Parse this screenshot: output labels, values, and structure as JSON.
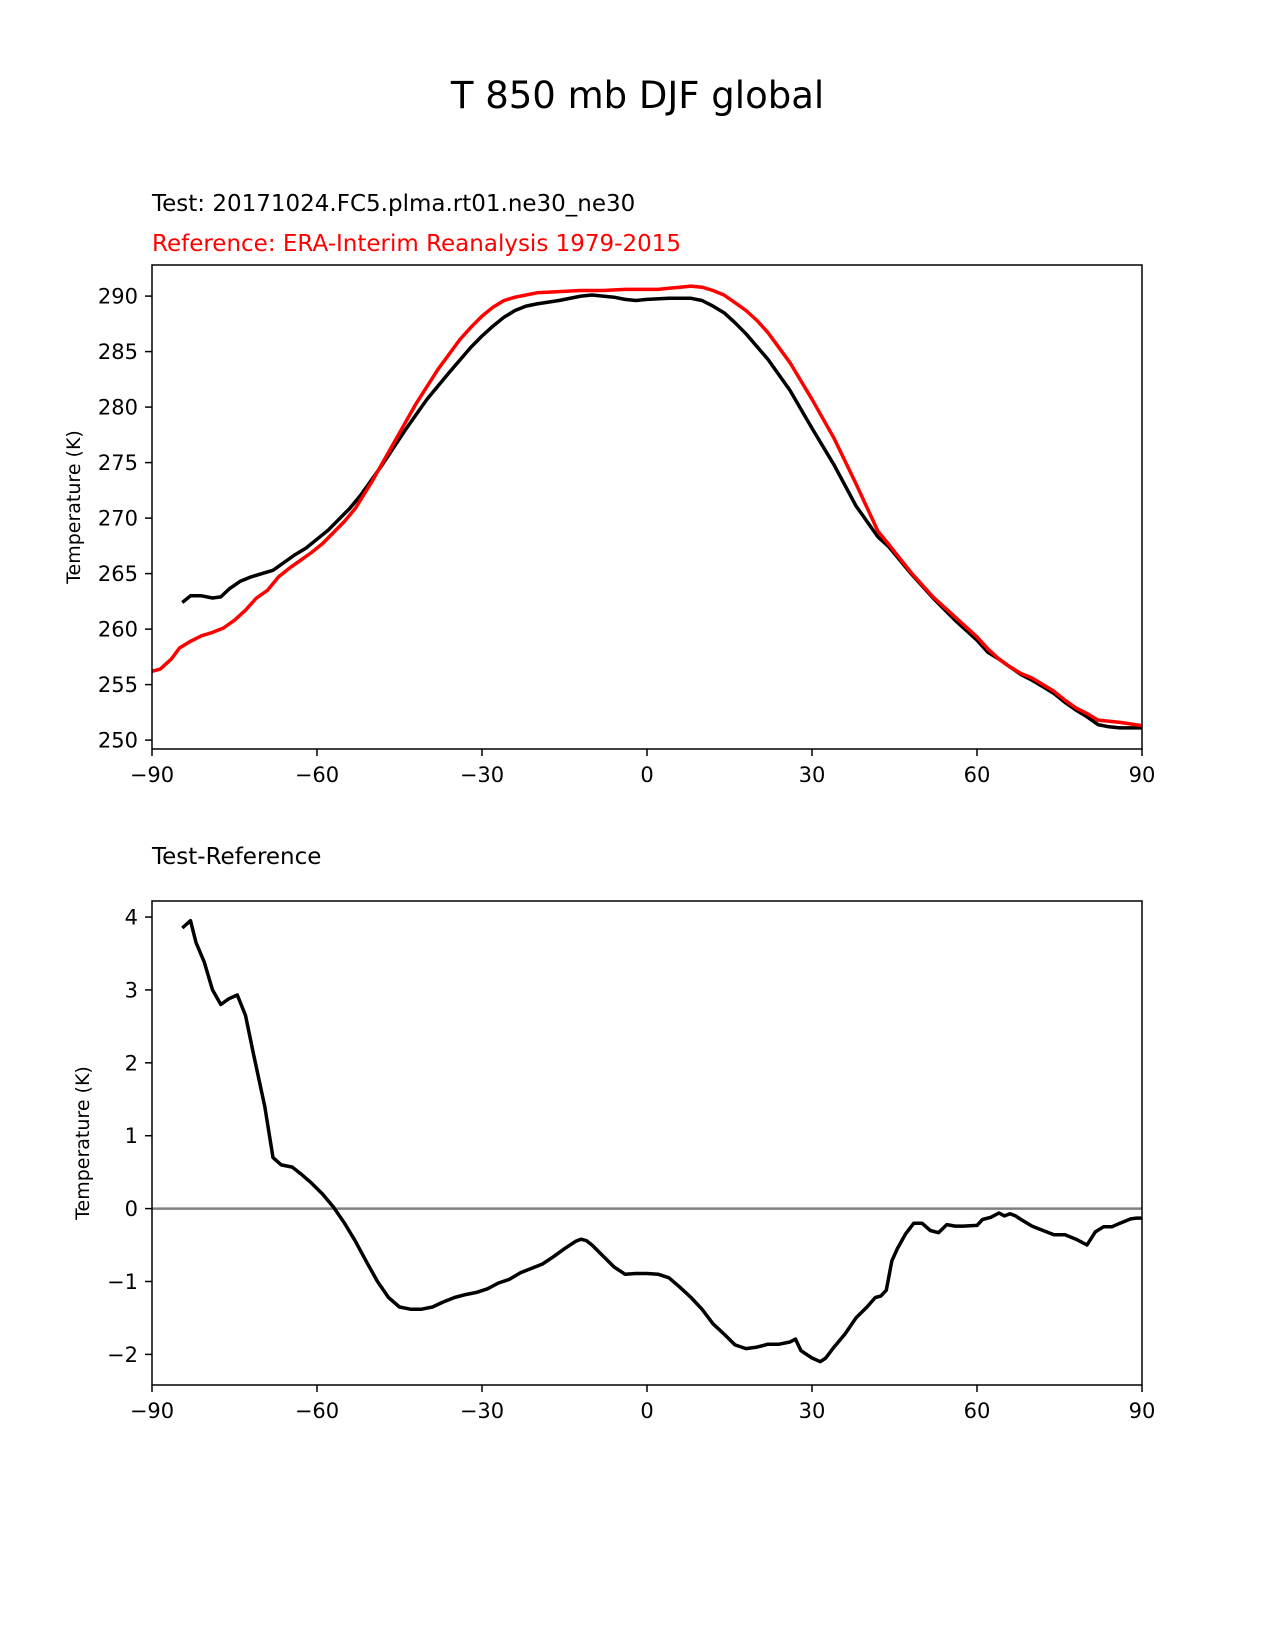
{
  "figure_title": "T 850 mb DJF global",
  "test_label": "Test: 20171024.FC5.plma.rt01.ne30_ne30",
  "reference_label": "Reference: ERA-Interim Reanalysis 1979-2015",
  "diff_label": "Test-Reference",
  "colors": {
    "test": "#000000",
    "reference": "#ff0000",
    "zero_line": "#808080"
  },
  "chart_data": [
    {
      "type": "line",
      "title": "T 850 mb DJF global",
      "xlabel": "",
      "ylabel": "Temperature (K)",
      "xlim": [
        -90,
        90
      ],
      "ylim": [
        249.2,
        292.8
      ],
      "xticks": [
        -90,
        -60,
        -30,
        0,
        30,
        60,
        90
      ],
      "xtick_labels": [
        "−90",
        "−60",
        "−30",
        "0",
        "30",
        "60",
        "90"
      ],
      "yticks": [
        250,
        255,
        260,
        265,
        270,
        275,
        280,
        285,
        290
      ],
      "ytick_labels": [
        "250",
        "255",
        "260",
        "265",
        "270",
        "275",
        "280",
        "285",
        "290"
      ],
      "series": [
        {
          "name": "Test: 20171024.FC5.plma.rt01.ne30_ne30",
          "color": "#000000",
          "x": [
            -84.5,
            -83,
            -81,
            -79,
            -77.5,
            -76,
            -74,
            -72,
            -70,
            -68,
            -66,
            -64,
            -62,
            -60,
            -58,
            -56,
            -54,
            -52,
            -48,
            -44,
            -40,
            -36,
            -32,
            -30,
            -28,
            -26,
            -24,
            -22,
            -20,
            -16,
            -12,
            -10,
            -8,
            -6,
            -4,
            -2,
            0,
            4,
            6,
            8,
            10,
            12,
            14,
            16,
            18,
            22,
            26,
            30,
            34,
            38,
            42,
            44,
            48,
            52,
            56,
            60,
            62,
            64,
            66,
            68,
            70,
            72,
            74,
            76,
            78,
            80,
            82,
            84,
            86,
            88,
            90
          ],
          "y": [
            262.4,
            263.0,
            263.0,
            262.8,
            262.9,
            263.6,
            264.3,
            264.7,
            265.0,
            265.3,
            266.0,
            266.7,
            267.3,
            268.1,
            268.9,
            269.9,
            270.9,
            272.1,
            274.9,
            277.9,
            280.7,
            283.1,
            285.4,
            286.4,
            287.3,
            288.1,
            288.7,
            289.1,
            289.3,
            289.6,
            290.0,
            290.1,
            290.0,
            289.9,
            289.7,
            289.6,
            289.7,
            289.8,
            289.8,
            289.8,
            289.6,
            289.1,
            288.5,
            287.6,
            286.6,
            284.3,
            281.5,
            278.1,
            274.8,
            271.1,
            268.3,
            267.4,
            265.0,
            262.8,
            260.8,
            259.0,
            257.9,
            257.3,
            256.6,
            255.9,
            255.4,
            254.8,
            254.2,
            253.4,
            252.7,
            252.1,
            251.4,
            251.2,
            251.1,
            251.1,
            251.1
          ]
        },
        {
          "name": "Reference: ERA-Interim Reanalysis 1979-2015",
          "color": "#ff0000",
          "x": [
            -90,
            -88.5,
            -86.5,
            -85,
            -83,
            -81,
            -79,
            -77,
            -75,
            -73,
            -71,
            -69,
            -67,
            -65,
            -63,
            -61,
            -59,
            -57,
            -55,
            -53,
            -50,
            -46,
            -42,
            -38,
            -34,
            -32,
            -30,
            -28,
            -26,
            -24,
            -22,
            -20,
            -16,
            -12,
            -8,
            -4,
            0,
            2,
            4,
            6,
            8,
            10,
            12,
            14,
            16,
            18,
            20,
            22,
            26,
            30,
            34,
            38,
            42,
            44,
            48,
            52,
            56,
            60,
            62,
            64,
            66,
            68,
            70,
            72,
            74,
            76,
            78,
            80,
            82,
            86,
            90
          ],
          "y": [
            256.2,
            256.4,
            257.3,
            258.3,
            258.9,
            259.4,
            259.7,
            260.1,
            260.8,
            261.7,
            262.8,
            263.5,
            264.7,
            265.5,
            266.2,
            266.9,
            267.7,
            268.7,
            269.7,
            270.9,
            273.3,
            276.8,
            280.3,
            283.4,
            286.1,
            287.2,
            288.2,
            289.0,
            289.6,
            289.9,
            290.1,
            290.3,
            290.4,
            290.5,
            290.5,
            290.6,
            290.6,
            290.6,
            290.7,
            290.8,
            290.9,
            290.8,
            290.5,
            290.1,
            289.4,
            288.7,
            287.8,
            286.7,
            284.0,
            280.7,
            277.2,
            273.1,
            268.8,
            267.6,
            265.1,
            262.9,
            261.1,
            259.3,
            258.2,
            257.3,
            256.6,
            256.0,
            255.6,
            255.0,
            254.4,
            253.6,
            252.9,
            252.4,
            251.8,
            251.6,
            251.3
          ]
        }
      ]
    },
    {
      "type": "line",
      "title": "Test-Reference",
      "xlabel": "",
      "ylabel": "Temperature (K)",
      "xlim": [
        -90,
        90
      ],
      "ylim": [
        -2.42,
        4.22
      ],
      "xticks": [
        -90,
        -60,
        -30,
        0,
        30,
        60,
        90
      ],
      "xtick_labels": [
        "−90",
        "−60",
        "−30",
        "0",
        "30",
        "60",
        "90"
      ],
      "yticks": [
        -2,
        -1,
        0,
        1,
        2,
        3,
        4
      ],
      "ytick_labels": [
        "−2",
        "−1",
        "0",
        "1",
        "2",
        "3",
        "4"
      ],
      "reference_line": {
        "y": 0,
        "color": "#808080"
      },
      "series": [
        {
          "name": "Test-Reference",
          "color": "#000000",
          "x": [
            -84.5,
            -83,
            -82,
            -80.5,
            -79,
            -77.5,
            -76,
            -74.5,
            -73,
            -71.5,
            -69.5,
            -68,
            -66.5,
            -64.5,
            -63,
            -61,
            -59,
            -57,
            -55,
            -53,
            -51,
            -49,
            -47,
            -45,
            -43,
            -41,
            -39,
            -37,
            -35,
            -33,
            -31,
            -29,
            -27,
            -25,
            -23,
            -21,
            -19,
            -17,
            -15,
            -13,
            -12,
            -11,
            -10,
            -8,
            -6,
            -4,
            -2,
            0,
            2,
            4,
            6,
            8,
            10,
            12,
            14,
            16,
            18,
            20,
            22,
            24,
            26,
            27,
            28,
            30,
            31.5,
            32.5,
            34,
            36,
            38,
            40,
            41.5,
            42.5,
            43.5,
            44.5,
            45.5,
            47,
            48.5,
            50,
            51.5,
            53,
            54.5,
            56,
            57.5,
            60,
            61,
            62.5,
            64,
            65,
            66,
            67,
            68,
            70,
            72,
            74,
            76,
            78,
            80,
            81.5,
            83,
            84.5,
            86,
            88,
            89,
            90
          ],
          "y": [
            3.85,
            3.95,
            3.65,
            3.38,
            3.0,
            2.8,
            2.88,
            2.93,
            2.65,
            2.1,
            1.4,
            0.7,
            0.6,
            0.57,
            0.48,
            0.35,
            0.2,
            0.02,
            -0.2,
            -0.45,
            -0.73,
            -1.0,
            -1.22,
            -1.35,
            -1.38,
            -1.38,
            -1.35,
            -1.28,
            -1.22,
            -1.18,
            -1.15,
            -1.1,
            -1.02,
            -0.97,
            -0.88,
            -0.82,
            -0.76,
            -0.66,
            -0.55,
            -0.45,
            -0.42,
            -0.44,
            -0.5,
            -0.65,
            -0.8,
            -0.9,
            -0.89,
            -0.89,
            -0.9,
            -0.95,
            -1.08,
            -1.22,
            -1.38,
            -1.58,
            -1.72,
            -1.87,
            -1.92,
            -1.9,
            -1.86,
            -1.86,
            -1.83,
            -1.79,
            -1.95,
            -2.05,
            -2.1,
            -2.05,
            -1.9,
            -1.72,
            -1.5,
            -1.35,
            -1.22,
            -1.2,
            -1.12,
            -0.72,
            -0.55,
            -0.35,
            -0.2,
            -0.2,
            -0.3,
            -0.33,
            -0.22,
            -0.24,
            -0.24,
            -0.23,
            -0.15,
            -0.12,
            -0.06,
            -0.1,
            -0.07,
            -0.1,
            -0.15,
            -0.24,
            -0.3,
            -0.36,
            -0.36,
            -0.42,
            -0.5,
            -0.32,
            -0.25,
            -0.25,
            -0.2,
            -0.14,
            -0.13,
            -0.13
          ]
        }
      ]
    }
  ]
}
